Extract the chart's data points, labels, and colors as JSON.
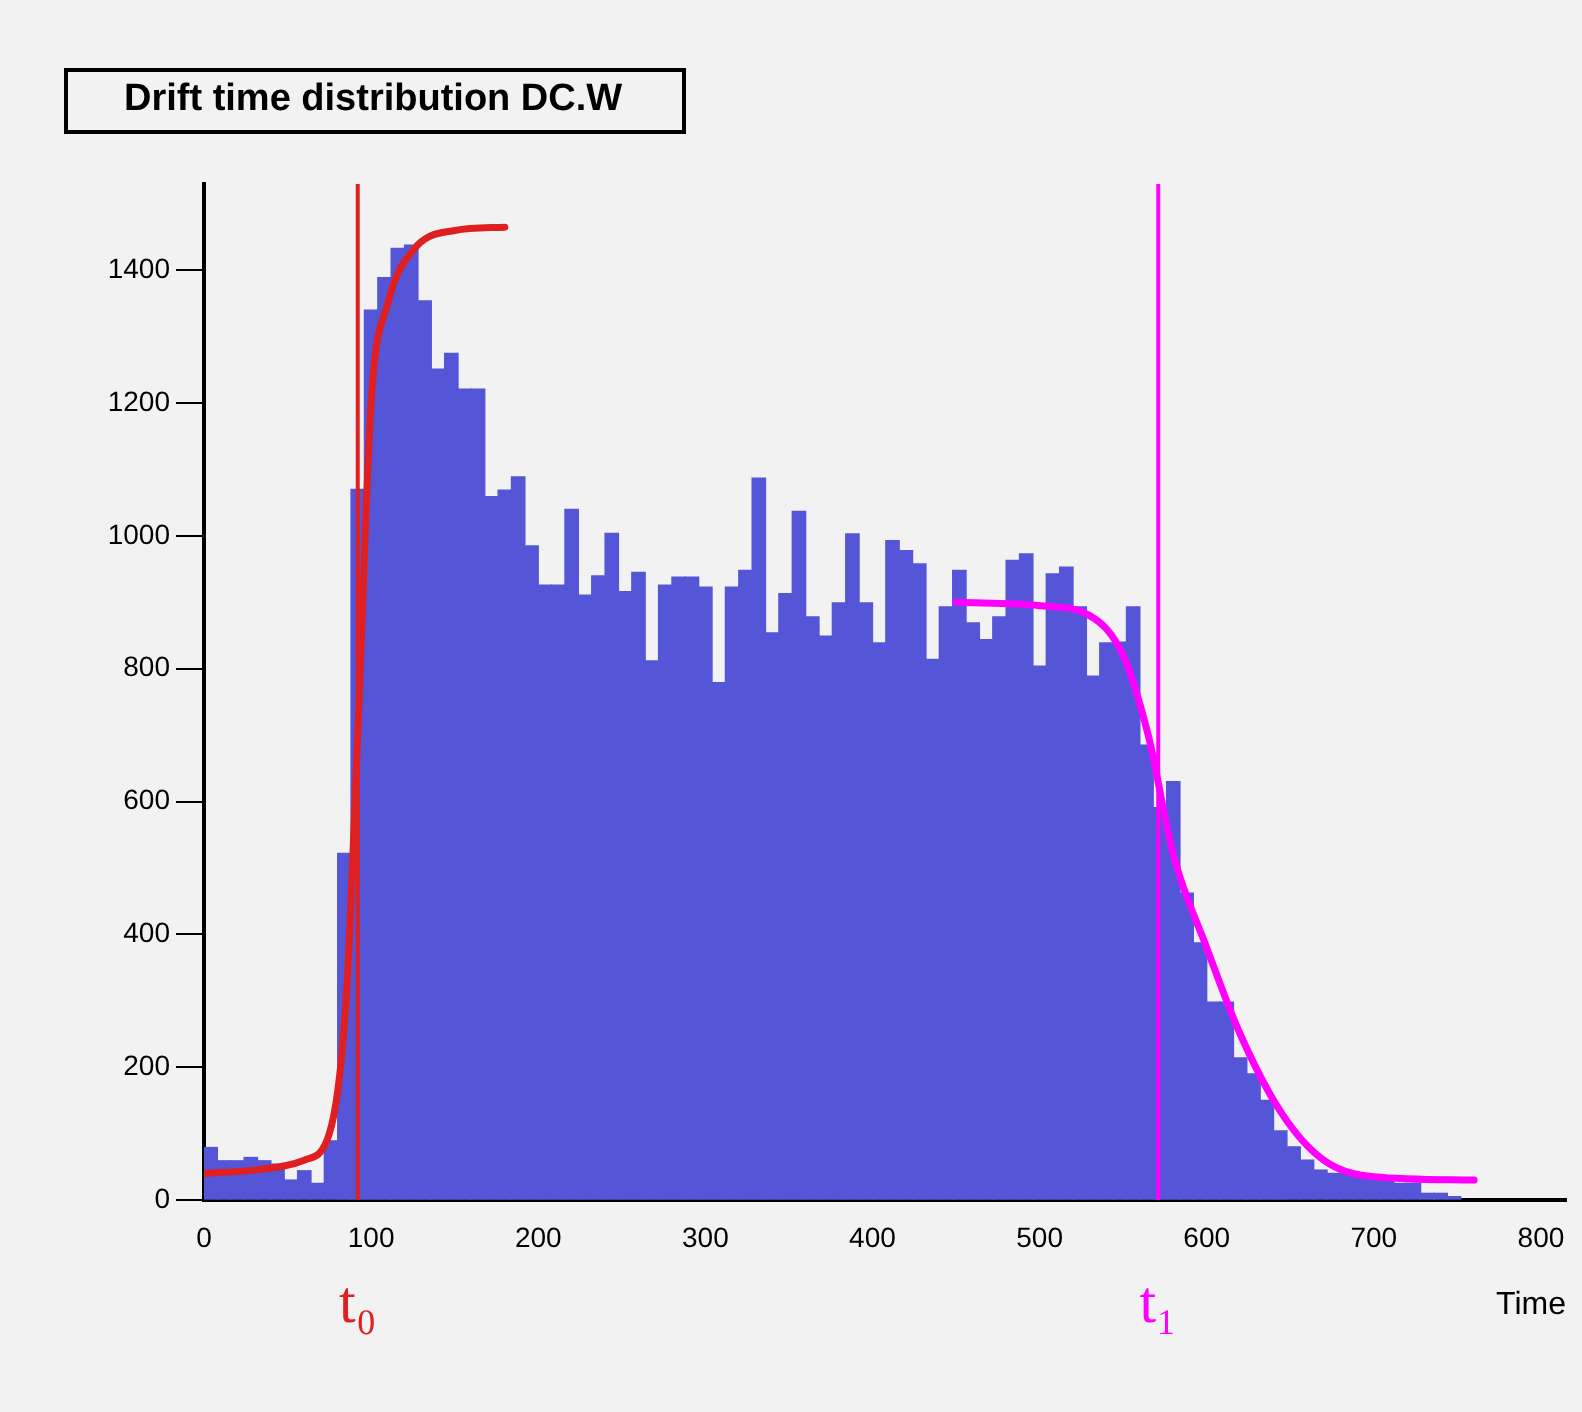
{
  "chart_data": {
    "type": "histogram",
    "title": "Drift time distribution DC.W",
    "xlabel": "Time",
    "bins": [
      0,
      8,
      16,
      24,
      32,
      40,
      48,
      56,
      64,
      72,
      80,
      88,
      96,
      104,
      112,
      120,
      128,
      136,
      144,
      152,
      160,
      168,
      176,
      184,
      192,
      200,
      208,
      216,
      224,
      232,
      240,
      248,
      256,
      264,
      272,
      280,
      288,
      296,
      304,
      312,
      320,
      328,
      336,
      344,
      352,
      360,
      368,
      376,
      384,
      392,
      400,
      408,
      416,
      424,
      432,
      440,
      448,
      456,
      464,
      472,
      480,
      488,
      496,
      504,
      512,
      520,
      528,
      536,
      544,
      552,
      560,
      568,
      576,
      584,
      592,
      600,
      608,
      616,
      624,
      632,
      640,
      648,
      656,
      664,
      672,
      680,
      688,
      696,
      704,
      712,
      720,
      728,
      736,
      744,
      752
    ],
    "values": [
      79,
      59,
      59,
      64,
      59,
      54,
      30,
      44,
      25,
      89,
      522,
      1070,
      1340,
      1389,
      1433,
      1438,
      1354,
      1251,
      1275,
      1221,
      1221,
      1059,
      1069,
      1089,
      985,
      926,
      926,
      1040,
      911,
      940,
      1004,
      916,
      945,
      812,
      926,
      938,
      938,
      923,
      779,
      923,
      948,
      1087,
      854,
      913,
      1037,
      878,
      849,
      899,
      1003,
      899,
      839,
      993,
      978,
      958,
      814,
      893,
      948,
      869,
      844,
      878,
      963,
      973,
      804,
      943,
      953,
      893,
      789,
      839,
      840,
      893,
      685,
      591,
      630,
      462,
      387,
      298,
      298,
      214,
      190,
      150,
      104,
      80,
      60,
      45,
      40,
      40,
      40,
      30,
      30,
      25,
      25,
      10,
      10,
      5
    ],
    "color": "#5555d8",
    "series": [
      {
        "type": "line",
        "color": "#e02020",
        "x": [
          0,
          30,
          60,
          75,
          85,
          92,
          100,
          110,
          125,
          150,
          180
        ],
        "values": [
          40,
          45,
          60,
          100,
          300,
          700,
          1200,
          1350,
          1430,
          1460,
          1465
        ]
      },
      {
        "type": "line",
        "color": "#ff00ff",
        "x": [
          450,
          500,
          530,
          550,
          565,
          580,
          600,
          620,
          645,
          670,
          700,
          760
        ],
        "values": [
          900,
          895,
          880,
          820,
          700,
          520,
          380,
          250,
          130,
          60,
          35,
          30
        ]
      }
    ],
    "ref_lines": [
      {
        "axis": "x",
        "value": 92,
        "label": "t₀",
        "color": "#e02020"
      },
      {
        "axis": "x",
        "value": 571,
        "label": "t₁",
        "color": "#ff00ff"
      }
    ],
    "xlim": [
      0,
      815
    ],
    "ylim": [
      0,
      1530
    ],
    "xticks": [
      0,
      100,
      200,
      300,
      400,
      500,
      600,
      700,
      800
    ],
    "yticks": [
      0,
      200,
      400,
      600,
      800,
      1000,
      1200,
      1400
    ],
    "grid": false,
    "legend": false
  }
}
